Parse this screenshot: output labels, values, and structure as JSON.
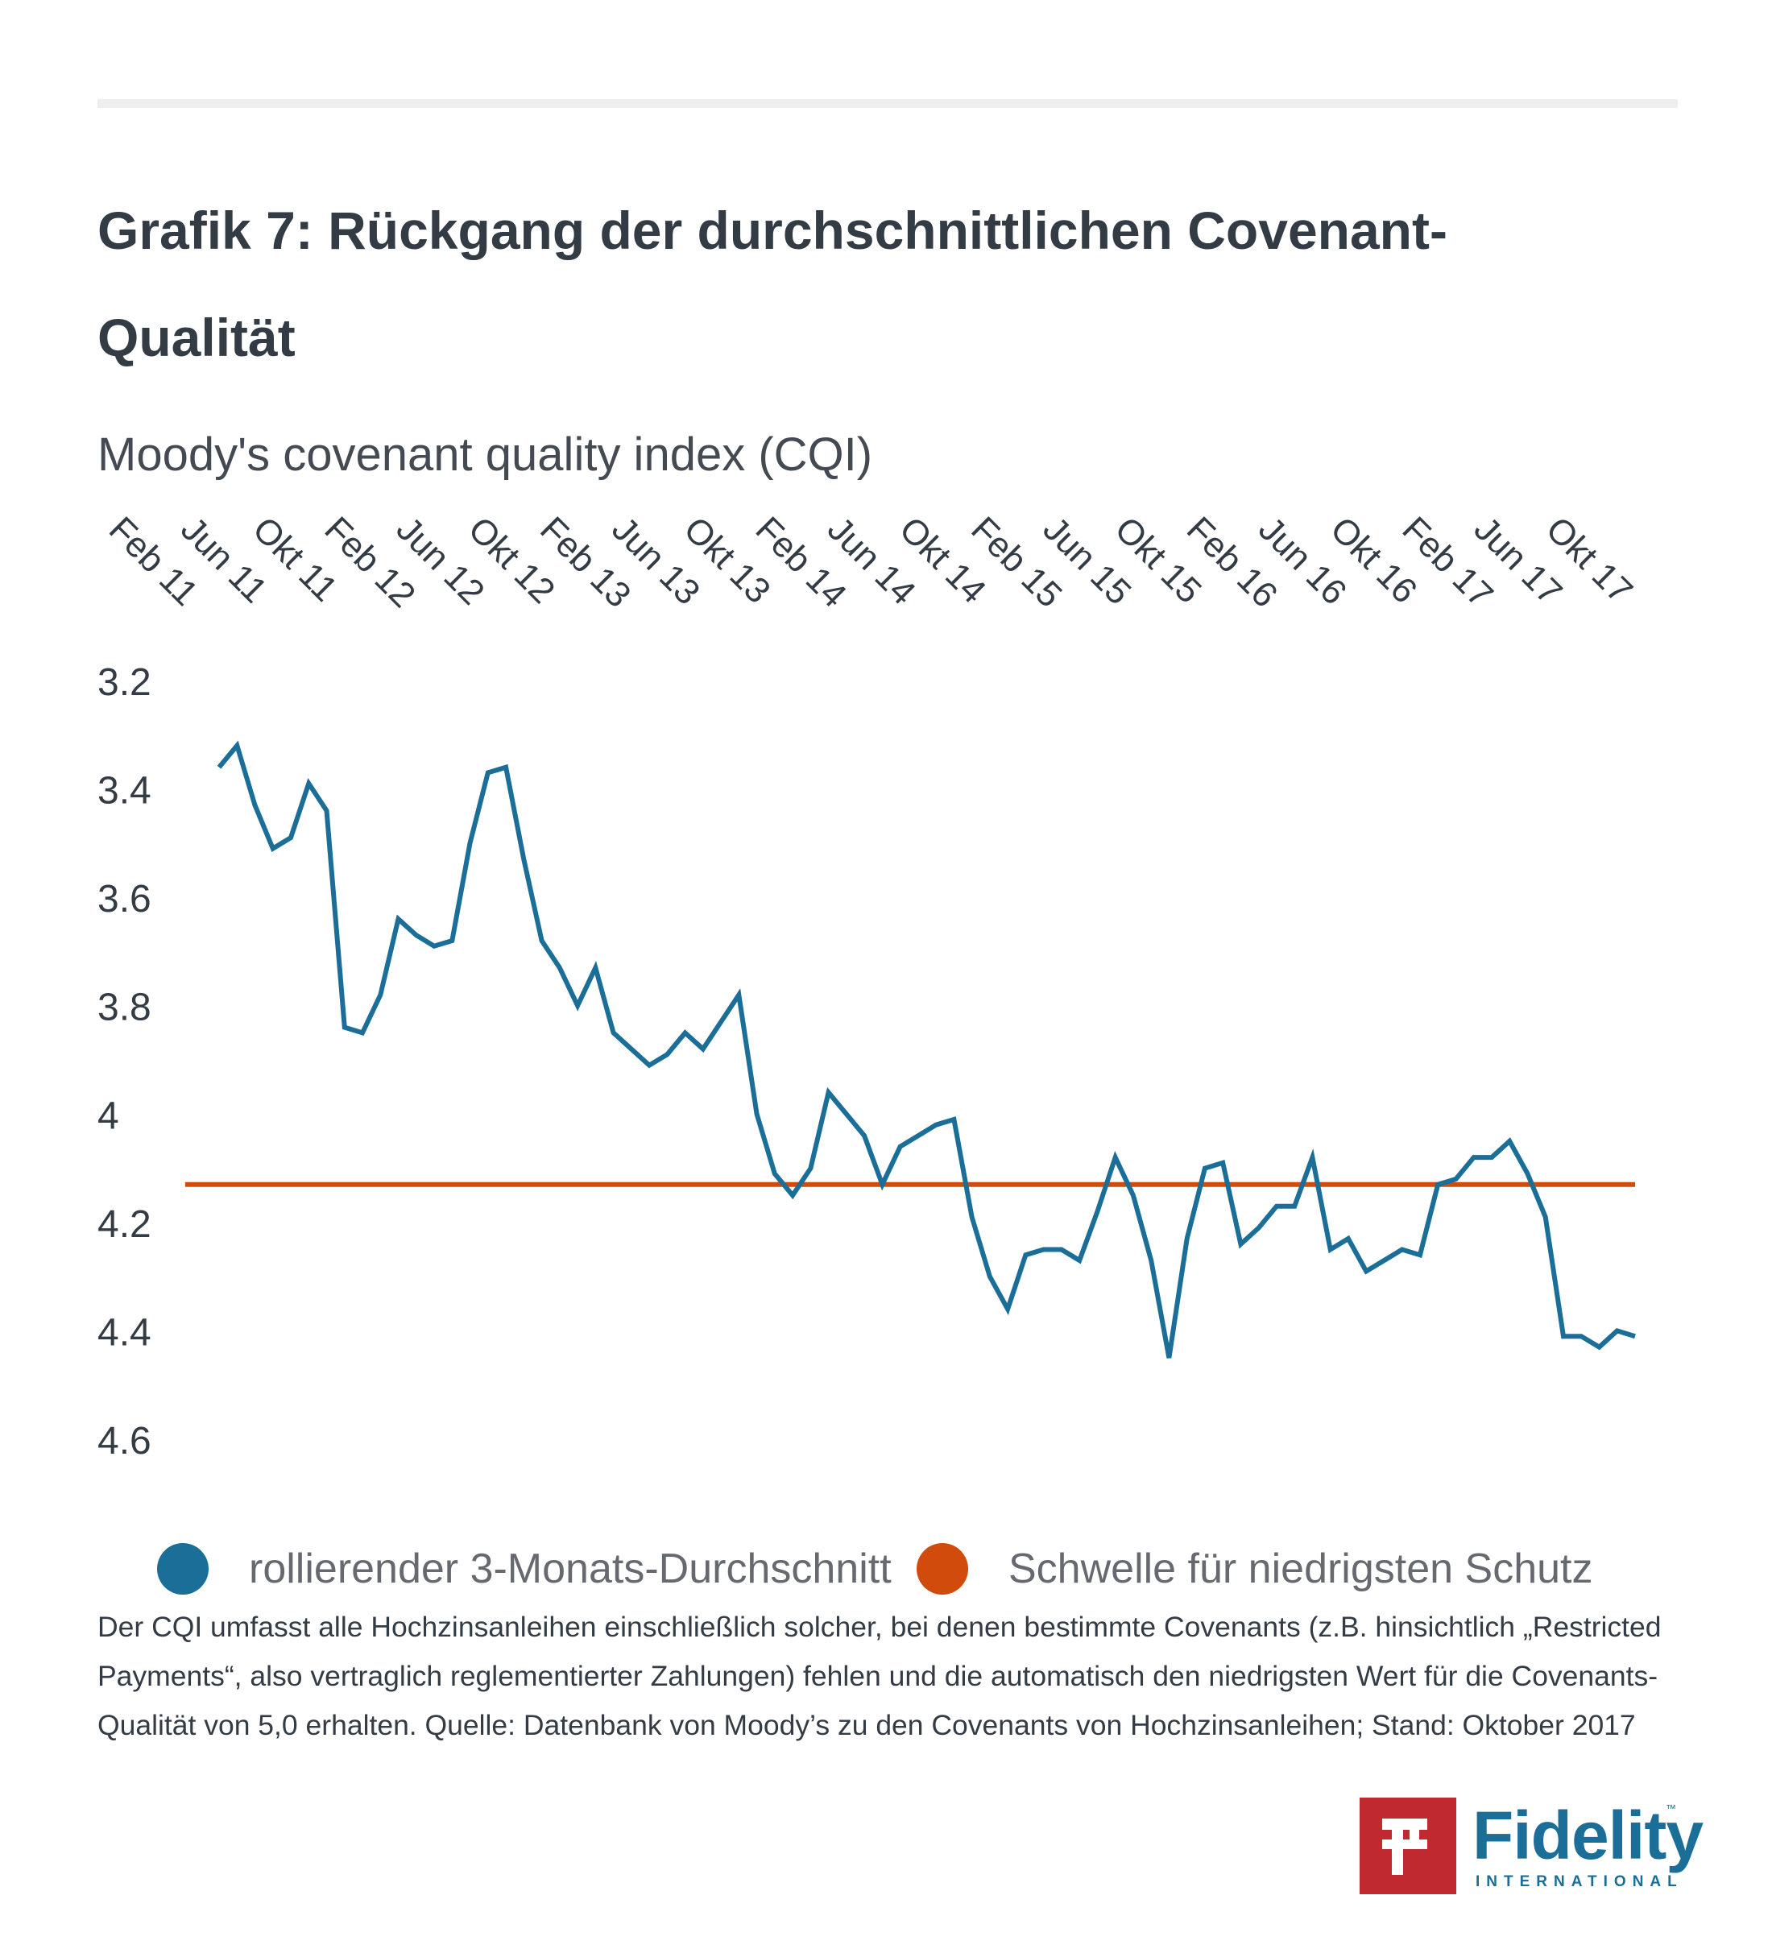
{
  "header": {
    "title": "Grafik 7: Rückgang der durchschnittlichen Covenant-Qualität",
    "subtitle": "Moody's covenant quality index (CQI)"
  },
  "chart_data": {
    "type": "line",
    "title": "Moody's covenant quality index (CQI)",
    "x_tick_labels": [
      "Feb 11",
      "Jun 11",
      "Okt 11",
      "Feb 12",
      "Jun 12",
      "Okt 12",
      "Feb 13",
      "Jun 13",
      "Okt 13",
      "Feb 14",
      "Jun 14",
      "Okt 14",
      "Feb 15",
      "Jun 15",
      "Okt 15",
      "Feb 16",
      "Jun 16",
      "Okt 16",
      "Feb 17",
      "Jun 17",
      "Okt 17"
    ],
    "y_tick_labels": [
      "3.2",
      "3.4",
      "3.6",
      "3.8",
      "4",
      "4.2",
      "4.4",
      "4.6"
    ],
    "y_ticks": [
      3.2,
      3.4,
      3.6,
      3.8,
      4.0,
      4.2,
      4.4,
      4.6
    ],
    "ylim": [
      3.2,
      4.6
    ],
    "y_inverted": true,
    "grid": false,
    "series": [
      {
        "name": "rollierender 3-Monats-Durchschnitt",
        "color": "#1a6e98",
        "values": [
          3.36,
          3.32,
          3.43,
          3.51,
          3.49,
          3.39,
          3.44,
          3.84,
          3.85,
          3.78,
          3.64,
          3.67,
          3.69,
          3.68,
          3.5,
          3.37,
          3.36,
          3.53,
          3.68,
          3.73,
          3.8,
          3.73,
          3.85,
          3.88,
          3.91,
          3.89,
          3.85,
          3.88,
          3.83,
          3.78,
          4.0,
          4.11,
          4.15,
          4.1,
          3.96,
          4.0,
          4.04,
          4.13,
          4.06,
          4.04,
          4.02,
          4.01,
          4.19,
          4.3,
          4.36,
          4.26,
          4.25,
          4.25,
          4.27,
          4.18,
          4.08,
          4.15,
          4.27,
          4.45,
          4.23,
          4.1,
          4.09,
          4.24,
          4.21,
          4.17,
          4.17,
          4.08,
          4.25,
          4.23,
          4.29,
          4.27,
          4.25,
          4.26,
          4.13,
          4.12,
          4.08,
          4.08,
          4.05,
          4.11,
          4.19,
          4.41,
          4.41,
          4.43,
          4.4,
          4.41
        ]
      },
      {
        "name": "Schwelle für niedrigsten Schutz",
        "color": "#d14b0c",
        "values": [
          4.13
        ]
      }
    ]
  },
  "legend": {
    "items": [
      {
        "label": "rollierender 3-Monats-Durchschnitt",
        "color": "#1a6e98"
      },
      {
        "label": "Schwelle für niedrigsten Schutz",
        "color": "#d14b0c"
      }
    ]
  },
  "footnote": "Der CQI umfasst alle Hochzinsanleihen einschließlich solcher, bei denen bestimmte Covenants (z.B. hinsichtlich „Restricted Payments“, also vertraglich reglementierter Zahlungen) fehlen und die automatisch den niedrigsten Wert für die Covenants-Qualität von 5,0 erhalten. Quelle: Datenbank von Moody’s zu den Covenants von Hochzinsanleihen; Stand: Oktober 2017",
  "logo": {
    "wordmark": "Fidelity",
    "subline": "INTERNATIONAL",
    "trademark": "™",
    "box_color": "#c0292f",
    "text_color": "#1a6e98"
  }
}
